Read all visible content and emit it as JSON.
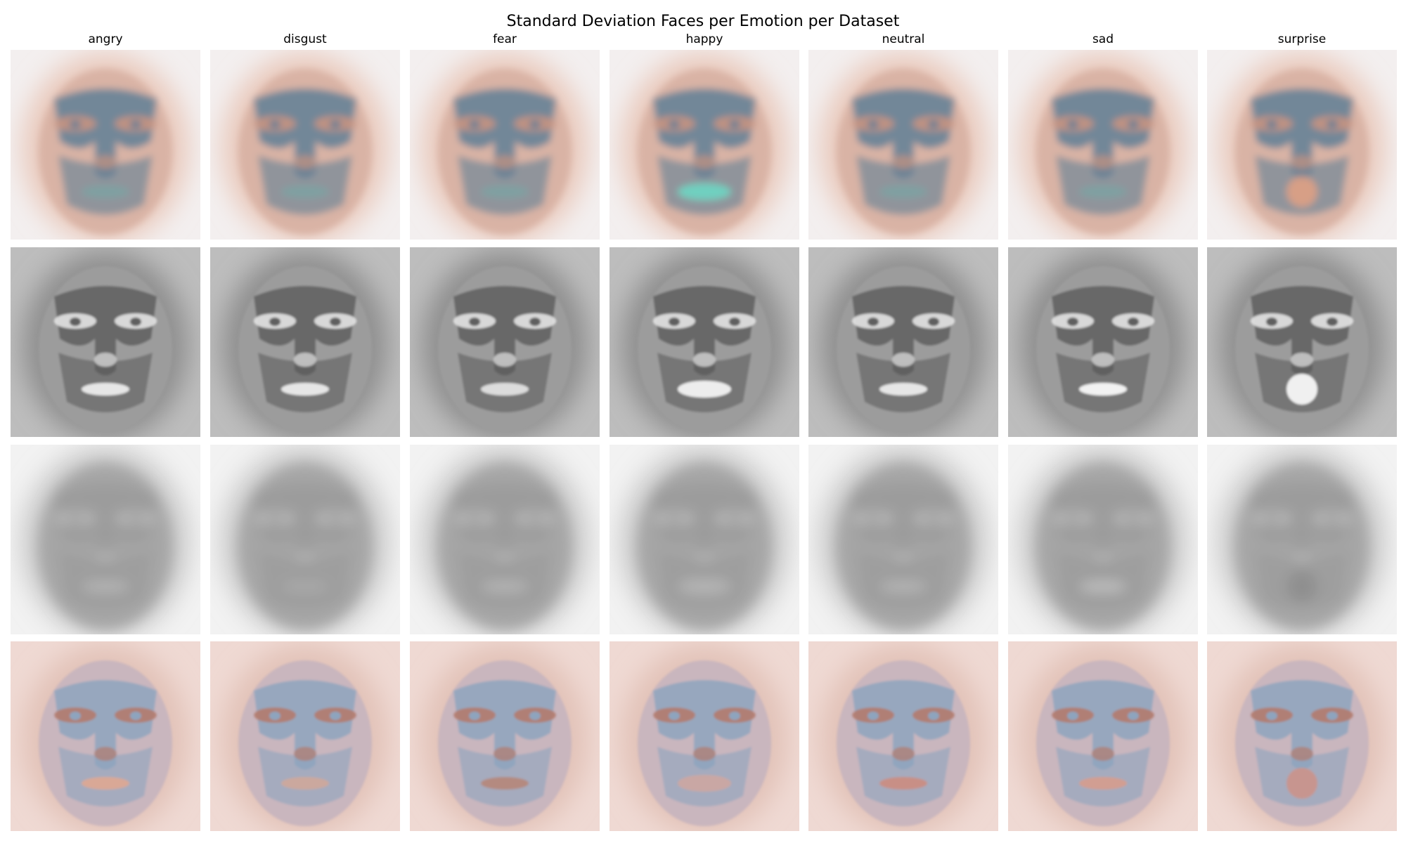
{
  "figure": {
    "title": "Standard Deviation Faces per Emotion per Dataset",
    "columns": [
      "angry",
      "disgust",
      "fear",
      "happy",
      "neutral",
      "sad",
      "surprise"
    ]
  },
  "rows": [
    {
      "style": "colored-soft",
      "bg": "#f3efef",
      "halo": "#e9c9bc",
      "face": "#d9b3a5",
      "mask": "#5f7f95",
      "feature": "#c9937f",
      "cells": [
        {
          "emotion": "angry",
          "accent": "#7fa0a2"
        },
        {
          "emotion": "disgust",
          "accent": "#7fa0a2"
        },
        {
          "emotion": "fear",
          "accent": "#7fa0a2"
        },
        {
          "emotion": "happy",
          "accent": "#6fd0c0"
        },
        {
          "emotion": "neutral",
          "accent": "#7fa0a2"
        },
        {
          "emotion": "sad",
          "accent": "#7fa0a2"
        },
        {
          "emotion": "surprise",
          "accent": "#d79f86"
        }
      ]
    },
    {
      "style": "grayscale-detailed",
      "bg": "#bdbdbd",
      "halo": "#8f8f8f",
      "face": "#9c9c9c",
      "mask": "#5e5e5e",
      "feature": "#e4e4e4",
      "cells": [
        {
          "emotion": "angry",
          "accent": "#e6e6e6"
        },
        {
          "emotion": "disgust",
          "accent": "#e6e6e6"
        },
        {
          "emotion": "fear",
          "accent": "#dcdcdc"
        },
        {
          "emotion": "happy",
          "accent": "#ededed"
        },
        {
          "emotion": "neutral",
          "accent": "#e6e6e6"
        },
        {
          "emotion": "sad",
          "accent": "#f2f2f2"
        },
        {
          "emotion": "surprise",
          "accent": "#f0f0f0"
        }
      ]
    },
    {
      "style": "grayscale-blurred",
      "bg": "#f2f2f2",
      "halo": "#c6c6c6",
      "face": "#a6a6a6",
      "mask": "#9a9a9a",
      "feature": "#b8b8b8",
      "cells": [
        {
          "emotion": "angry",
          "accent": "#b3b3b3"
        },
        {
          "emotion": "disgust",
          "accent": "#a9a9a9"
        },
        {
          "emotion": "fear",
          "accent": "#b3b3b3"
        },
        {
          "emotion": "happy",
          "accent": "#b3b3b3"
        },
        {
          "emotion": "neutral",
          "accent": "#b3b3b3"
        },
        {
          "emotion": "sad",
          "accent": "#bcbcbc"
        },
        {
          "emotion": "surprise",
          "accent": "#8f8f8f"
        }
      ]
    },
    {
      "style": "colored-detailed",
      "bg": "#efd9d3",
      "halo": "#e2c2b8",
      "face": "#c9b6be",
      "mask": "#8ea4be",
      "feature": "#b27b6c",
      "cells": [
        {
          "emotion": "angry",
          "accent": "#d9a896"
        },
        {
          "emotion": "disgust",
          "accent": "#cba89e"
        },
        {
          "emotion": "fear",
          "accent": "#b48a80"
        },
        {
          "emotion": "happy",
          "accent": "#c9a7a4"
        },
        {
          "emotion": "neutral",
          "accent": "#c88f86"
        },
        {
          "emotion": "sad",
          "accent": "#d19e92"
        },
        {
          "emotion": "surprise",
          "accent": "#c7958f"
        }
      ]
    }
  ]
}
